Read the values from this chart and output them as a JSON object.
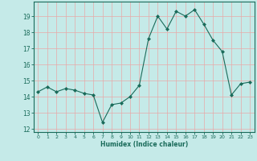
{
  "x": [
    0,
    1,
    2,
    3,
    4,
    5,
    6,
    7,
    8,
    9,
    10,
    11,
    12,
    13,
    14,
    15,
    16,
    17,
    18,
    19,
    20,
    21,
    22,
    23
  ],
  "y": [
    14.3,
    14.6,
    14.3,
    14.5,
    14.4,
    14.2,
    14.1,
    12.4,
    13.5,
    13.6,
    14.0,
    14.7,
    17.6,
    19.0,
    18.2,
    19.3,
    19.0,
    19.4,
    18.5,
    17.5,
    16.8,
    14.1,
    14.8,
    14.9
  ],
  "xlabel": "Humidex (Indice chaleur)",
  "xlim": [
    -0.5,
    23.5
  ],
  "ylim": [
    11.8,
    19.9
  ],
  "yticks": [
    12,
    13,
    14,
    15,
    16,
    17,
    18,
    19
  ],
  "xticks": [
    0,
    1,
    2,
    3,
    4,
    5,
    6,
    7,
    8,
    9,
    10,
    11,
    12,
    13,
    14,
    15,
    16,
    17,
    18,
    19,
    20,
    21,
    22,
    23
  ],
  "line_color": "#1a6b5a",
  "marker_color": "#1a6b5a",
  "bg_color": "#c5eae8",
  "grid_color": "#e8a8a8",
  "axes_color": "#1a6b5a"
}
